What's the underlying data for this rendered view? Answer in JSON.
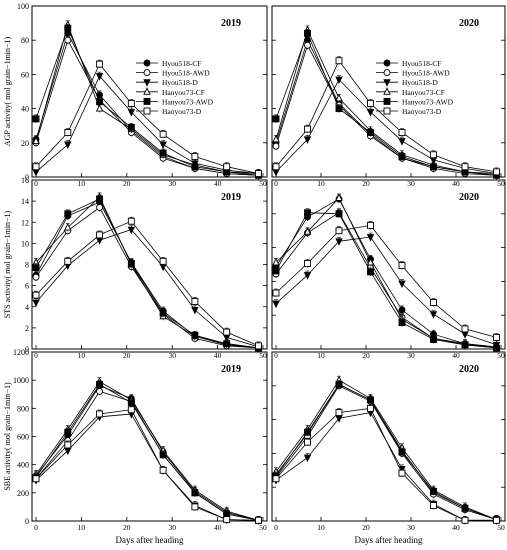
{
  "chart_data": [
    {
      "type": "line",
      "year": "2019",
      "ylabel": "AGP activity(  mol grain−1min−1)",
      "ylim": [
        0,
        100
      ],
      "yticks": [
        "0",
        "20",
        "40",
        "60",
        "80",
        "100"
      ],
      "xlim": [
        0,
        50
      ],
      "xticks": [
        "0",
        "10",
        "20",
        "30",
        "40",
        "50"
      ],
      "x": [
        0,
        7,
        14,
        21,
        28,
        35,
        42,
        49
      ],
      "legend": true,
      "series": [
        {
          "name": "Hyou518-CF",
          "marker": "circle-filled",
          "values": [
            22,
            84,
            48,
            27,
            12,
            5,
            2,
            1
          ]
        },
        {
          "name": "Hyou518-AWD",
          "marker": "circle-open",
          "values": [
            20,
            80,
            45,
            26,
            11,
            5,
            2,
            1
          ]
        },
        {
          "name": "Hyou518-D",
          "marker": "triangle-down-filled",
          "values": [
            3,
            19,
            59,
            38,
            19,
            8,
            4,
            2
          ]
        },
        {
          "name": "Hanyou73-CF",
          "marker": "triangle-up-open",
          "values": [
            21,
            89,
            40,
            28,
            13,
            7,
            3,
            2
          ]
        },
        {
          "name": "Hanyou73-AWD",
          "marker": "square-filled",
          "values": [
            34,
            87,
            44,
            29,
            14,
            6,
            3,
            1
          ]
        },
        {
          "name": "Hanyou73-D",
          "marker": "square-open",
          "values": [
            6,
            26,
            66,
            43,
            25,
            12,
            6,
            2
          ]
        }
      ]
    },
    {
      "type": "line",
      "year": "2020",
      "ylim": [
        0,
        100
      ],
      "xlim": [
        0,
        50
      ],
      "xticks": [
        "0",
        "10",
        "20",
        "30",
        "40",
        "50"
      ],
      "x": [
        0,
        7,
        14,
        21,
        28,
        35,
        42,
        49
      ],
      "legend": true,
      "series": [
        {
          "name": "Hyou518-CF",
          "marker": "circle-filled",
          "values": [
            20,
            80,
            43,
            25,
            11,
            6,
            3,
            1
          ]
        },
        {
          "name": "Hyou518-AWD",
          "marker": "circle-open",
          "values": [
            18,
            77,
            42,
            24,
            11,
            5,
            2,
            1
          ]
        },
        {
          "name": "Hyou518-D",
          "marker": "triangle-down-filled",
          "values": [
            3,
            22,
            57,
            38,
            21,
            10,
            5,
            2
          ]
        },
        {
          "name": "Hanyou73-CF",
          "marker": "triangle-up-open",
          "values": [
            22,
            86,
            46,
            27,
            13,
            7,
            3,
            2
          ]
        },
        {
          "name": "Hanyou73-AWD",
          "marker": "square-filled",
          "values": [
            34,
            84,
            40,
            26,
            12,
            6,
            3,
            1
          ]
        },
        {
          "name": "Hanyou73-D",
          "marker": "square-open",
          "values": [
            6,
            28,
            68,
            43,
            26,
            13,
            6,
            3
          ]
        }
      ]
    },
    {
      "type": "line",
      "year": "2019",
      "ylabel": "STS activity(  mol grain−1min−1)",
      "ylim": [
        0,
        16
      ],
      "yticks": [
        "0",
        "2",
        "4",
        "6",
        "8",
        "10",
        "12",
        "14",
        "16"
      ],
      "xlim": [
        0,
        50
      ],
      "xticks": [
        "0",
        "10",
        "20",
        "30",
        "40",
        "50"
      ],
      "x": [
        0,
        7,
        14,
        21,
        28,
        35,
        42,
        49
      ],
      "legend": false,
      "series": [
        {
          "name": "Hyou518-CF",
          "marker": "circle-filled",
          "values": [
            7.0,
            12.6,
            13.9,
            8.2,
            3.6,
            1.2,
            0.4,
            0.1
          ]
        },
        {
          "name": "Hyou518-AWD",
          "marker": "circle-open",
          "values": [
            6.8,
            11.2,
            13.4,
            7.8,
            3.3,
            1.0,
            0.3,
            0.1
          ]
        },
        {
          "name": "Hyou518-D",
          "marker": "triangle-down-filled",
          "values": [
            4.4,
            7.9,
            10.3,
            11.3,
            7.8,
            3.7,
            1.1,
            0.2
          ]
        },
        {
          "name": "Hanyou73-CF",
          "marker": "triangle-up-open",
          "values": [
            8.2,
            11.5,
            14.4,
            8.0,
            3.1,
            1.2,
            0.5,
            0.1
          ]
        },
        {
          "name": "Hanyou73-AWD",
          "marker": "square-filled",
          "values": [
            7.7,
            12.8,
            14.2,
            8.1,
            3.4,
            1.3,
            0.5,
            0.1
          ]
        },
        {
          "name": "Hanyou73-D",
          "marker": "square-open",
          "values": [
            5.1,
            8.3,
            10.8,
            12.1,
            8.3,
            4.5,
            1.6,
            0.3
          ]
        }
      ]
    },
    {
      "type": "line",
      "year": "2020",
      "ylim": [
        0,
        16
      ],
      "xlim": [
        0,
        50
      ],
      "xticks": [
        "0",
        "10",
        "20",
        "30",
        "40",
        "50"
      ],
      "x": [
        0,
        7,
        14,
        21,
        28,
        35,
        42,
        49
      ],
      "legend": false,
      "series": [
        {
          "name": "Hyou518-CF",
          "marker": "circle-filled",
          "values": [
            7.8,
            12.5,
            14.2,
            8.5,
            3.7,
            1.4,
            0.5,
            0.2
          ]
        },
        {
          "name": "Hyou518-AWD",
          "marker": "circle-open",
          "values": [
            7.1,
            11.0,
            12.9,
            7.7,
            3.0,
            1.0,
            0.4,
            0.1
          ]
        },
        {
          "name": "Hyou518-D",
          "marker": "triangle-down-filled",
          "values": [
            4.3,
            7.0,
            10.2,
            10.6,
            6.2,
            3.3,
            1.4,
            0.4
          ]
        },
        {
          "name": "Hanyou73-CF",
          "marker": "triangle-up-open",
          "values": [
            8.2,
            11.1,
            14.3,
            8.2,
            2.8,
            1.0,
            0.5,
            0.1
          ]
        },
        {
          "name": "Hanyou73-AWD",
          "marker": "square-filled",
          "values": [
            7.4,
            12.9,
            12.8,
            7.3,
            2.5,
            0.9,
            0.4,
            0.1
          ]
        },
        {
          "name": "Hanyou73-D",
          "marker": "square-open",
          "values": [
            5.3,
            8.1,
            11.2,
            11.7,
            7.9,
            4.4,
            1.9,
            1.1
          ]
        }
      ]
    },
    {
      "type": "line",
      "year": "2019",
      "ylabel": "SBE activity(  mol grain−1min−1)",
      "ylim": [
        0,
        1200
      ],
      "yticks": [
        "0",
        "200",
        "400",
        "600",
        "800",
        "1000",
        "1200"
      ],
      "xlim": [
        0,
        50
      ],
      "xticks": [
        "0",
        "10",
        "20",
        "30",
        "40",
        "50"
      ],
      "xlabel": "Days after heading",
      "x": [
        0,
        7,
        14,
        21,
        28,
        35,
        42,
        49
      ],
      "legend": false,
      "series": [
        {
          "name": "Hyou518-CF",
          "marker": "circle-filled",
          "values": [
            320,
            610,
            960,
            870,
            490,
            210,
            60,
            5
          ]
        },
        {
          "name": "Hyou518-AWD",
          "marker": "circle-open",
          "values": [
            300,
            570,
            920,
            850,
            470,
            200,
            50,
            5
          ]
        },
        {
          "name": "Hyou518-D",
          "marker": "triangle-down-filled",
          "values": [
            290,
            500,
            740,
            760,
            360,
            110,
            10,
            5
          ]
        },
        {
          "name": "Hanyou73-CF",
          "marker": "triangle-up-open",
          "values": [
            330,
            650,
            990,
            860,
            500,
            220,
            70,
            5
          ]
        },
        {
          "name": "Hanyou73-AWD",
          "marker": "square-filled",
          "values": [
            310,
            630,
            970,
            840,
            470,
            200,
            50,
            5
          ]
        },
        {
          "name": "Hanyou73-D",
          "marker": "square-open",
          "values": [
            300,
            540,
            760,
            790,
            360,
            100,
            10,
            5
          ]
        }
      ]
    },
    {
      "type": "line",
      "year": "2020",
      "ylim": [
        0,
        1200
      ],
      "xlim": [
        0,
        50
      ],
      "xticks": [
        "0",
        "10",
        "20",
        "30",
        "40",
        "50"
      ],
      "xlabel": "Days after heading",
      "x": [
        0,
        7,
        14,
        21,
        28,
        35,
        42,
        49
      ],
      "legend": false,
      "series": [
        {
          "name": "Hyou518-CF",
          "marker": "circle-filled",
          "values": [
            330,
            620,
            970,
            860,
            500,
            200,
            90,
            10
          ]
        },
        {
          "name": "Hyou518-AWD",
          "marker": "circle-open",
          "values": [
            310,
            600,
            960,
            850,
            480,
            190,
            80,
            10
          ]
        },
        {
          "name": "Hyou518-D",
          "marker": "triangle-down-filled",
          "values": [
            290,
            450,
            730,
            770,
            370,
            120,
            5,
            5
          ]
        },
        {
          "name": "Hanyou73-CF",
          "marker": "triangle-up-open",
          "values": [
            350,
            650,
            1000,
            870,
            520,
            220,
            100,
            10
          ]
        },
        {
          "name": "Hanyou73-AWD",
          "marker": "square-filled",
          "values": [
            320,
            630,
            970,
            860,
            490,
            210,
            90,
            10
          ]
        },
        {
          "name": "Hanyou73-D",
          "marker": "square-open",
          "values": [
            300,
            560,
            770,
            800,
            340,
            110,
            5,
            5
          ]
        }
      ]
    }
  ]
}
